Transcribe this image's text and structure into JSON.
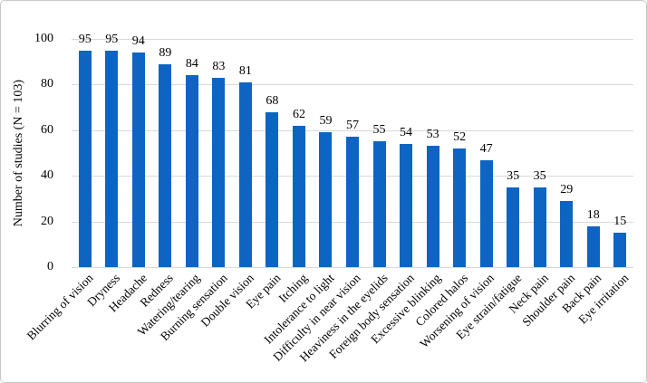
{
  "figure": {
    "background": "#ffffff",
    "border_color": "#c8c8c8"
  },
  "colors": {
    "bar": "#0d64c2",
    "gridline": "#d9d9d9",
    "text": "#000000"
  },
  "chart_data": {
    "type": "bar",
    "title": "",
    "xlabel": "",
    "ylabel": "Number of studies (N = 103)",
    "ylim": [
      0,
      100
    ],
    "yticks": [
      0,
      20,
      40,
      60,
      80,
      100
    ],
    "grid": "horizontal",
    "legend_position": "none",
    "data_labels_shown": true,
    "categories": [
      "Blurring of vision",
      "Dryness",
      "Headache",
      "Redness",
      "Watering/tearing",
      "Burning sensation",
      "Double vision",
      "Eye pain",
      "Itching",
      "Intolerance to light",
      "Difficulty in near vision",
      "Heaviness in the eyelids",
      "Foreign body sensation",
      "Excessive blinking",
      "Colored halos",
      "Worsening of vision",
      "Eye strain/fatigue",
      "Neck pain",
      "Shoulder pain",
      "Back pain",
      "Eye irritation"
    ],
    "values": [
      95,
      95,
      94,
      89,
      84,
      83,
      81,
      68,
      62,
      59,
      57,
      55,
      54,
      53,
      52,
      47,
      35,
      35,
      29,
      18,
      15
    ]
  }
}
